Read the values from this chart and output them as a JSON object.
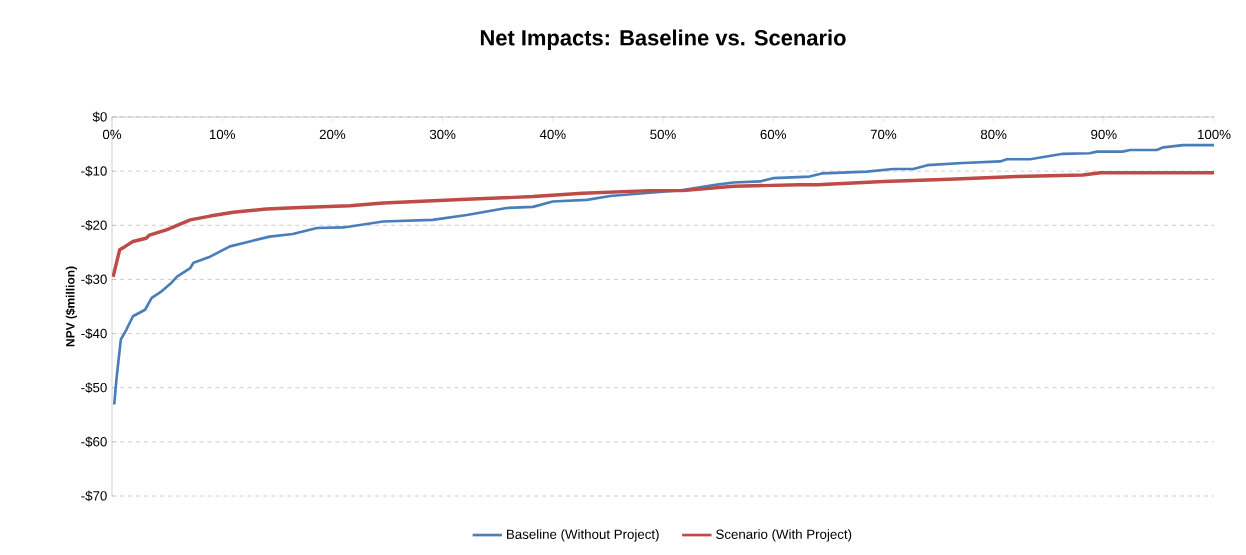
{
  "chart_data": {
    "type": "line",
    "title": "Net Impacts: Baseline vs. Scenario",
    "ylabel": "NPV ($million)",
    "xlim": [
      0,
      100
    ],
    "xticks": [
      {
        "value": 0,
        "label": "0%"
      },
      {
        "value": 10,
        "label": "10%"
      },
      {
        "value": 20,
        "label": "20%"
      },
      {
        "value": 30,
        "label": "30%"
      },
      {
        "value": 40,
        "label": "40%"
      },
      {
        "value": 50,
        "label": "50%"
      },
      {
        "value": 60,
        "label": "60%"
      },
      {
        "value": 70,
        "label": "70%"
      },
      {
        "value": 80,
        "label": "80%"
      },
      {
        "value": 90,
        "label": "90%"
      },
      {
        "value": 100,
        "label": "100%"
      }
    ],
    "ylim": [
      -70,
      0
    ],
    "yticks": [
      {
        "value": 0,
        "label": "$0"
      },
      {
        "value": -10,
        "label": "-$10"
      },
      {
        "value": -20,
        "label": "-$20"
      },
      {
        "value": -30,
        "label": "-$30"
      },
      {
        "value": -40,
        "label": "-$40"
      },
      {
        "value": -50,
        "label": "-$50"
      },
      {
        "value": -60,
        "label": "-$60"
      },
      {
        "value": -70,
        "label": "-$70"
      }
    ],
    "grid": "y",
    "legend": "bottom",
    "marker": "none",
    "line_style": "solid",
    "series": [
      {
        "name": "Baseline (Without Project)",
        "color": "#4a7ebb",
        "x": [
          0.2,
          0.4,
          0.8,
          1.3,
          1.9,
          3.0,
          3.6,
          4.5,
          5.4,
          5.9,
          7.1,
          7.4,
          8.9,
          10.7,
          12.5,
          14.3,
          16.4,
          18.6,
          21.0,
          24.6,
          29.1,
          32.2,
          35.8,
          38.2,
          40.0,
          43.1,
          45.2,
          48.8,
          51.8,
          54.9,
          56.4,
          58.8,
          60.0,
          63.3,
          64.5,
          68.5,
          70.9,
          72.7,
          74.0,
          77.2,
          80.6,
          81.2,
          83.3,
          86.3,
          88.7,
          89.4,
          91.7,
          92.4,
          94.8,
          95.4,
          97.2,
          100
        ],
        "values": [
          -53.1,
          -48.5,
          -41.1,
          -39.3,
          -36.8,
          -35.6,
          -33.4,
          -32.2,
          -30.6,
          -29.5,
          -27.9,
          -26.9,
          -25.8,
          -23.9,
          -23.0,
          -22.1,
          -21.6,
          -20.5,
          -20.4,
          -19.3,
          -19.0,
          -18.1,
          -16.8,
          -16.6,
          -15.6,
          -15.3,
          -14.6,
          -14.0,
          -13.5,
          -12.5,
          -12.1,
          -11.9,
          -11.3,
          -11.0,
          -10.4,
          -10.1,
          -9.6,
          -9.6,
          -8.9,
          -8.5,
          -8.2,
          -7.8,
          -7.8,
          -6.8,
          -6.7,
          -6.4,
          -6.4,
          -6.1,
          -6.1,
          -5.6,
          -5.2,
          -5.2
        ]
      },
      {
        "name": "Scenario (With Project)",
        "color": "#be4b48",
        "x": [
          0.1,
          0.7,
          1.2,
          1.9,
          3.1,
          3.4,
          5.0,
          7.1,
          8.9,
          11.0,
          14.0,
          17.1,
          21.6,
          24.6,
          32.2,
          38.2,
          42.7,
          48.8,
          51.8,
          56.4,
          62.4,
          64.0,
          70.0,
          76.0,
          82.1,
          88.1,
          89.7,
          100
        ],
        "values": [
          -29.5,
          -24.5,
          -23.9,
          -23.0,
          -22.4,
          -21.8,
          -20.8,
          -19.0,
          -18.3,
          -17.6,
          -17.0,
          -16.7,
          -16.4,
          -15.9,
          -15.2,
          -14.7,
          -14.1,
          -13.6,
          -13.6,
          -12.8,
          -12.5,
          -12.5,
          -11.9,
          -11.5,
          -11.0,
          -10.7,
          -10.3,
          -10.3
        ]
      }
    ]
  }
}
